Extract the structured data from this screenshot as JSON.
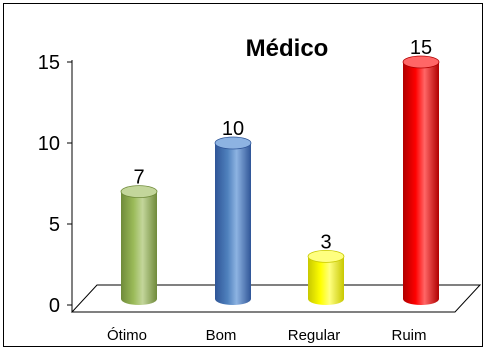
{
  "chart_data": {
    "type": "bar",
    "title": "Médico",
    "categories": [
      "Ótimo",
      "Bom",
      "Regular",
      "Ruim"
    ],
    "values": [
      7,
      10,
      3,
      15
    ],
    "ylim": [
      0,
      15
    ],
    "yticks": [
      "0",
      "5",
      "10",
      "15"
    ],
    "grid": false,
    "legend": "none",
    "bar_style": "3d-cylinder",
    "colors": [
      "#9bbb59",
      "#4f81bd",
      "#ffff00",
      "#ff0000"
    ],
    "color_shades": [
      "#6f8a3a",
      "#2f5597",
      "#c8c800",
      "#b00000"
    ],
    "color_tops": [
      "#c3d69b",
      "#8db3e2",
      "#ffff80",
      "#ff6666"
    ]
  }
}
